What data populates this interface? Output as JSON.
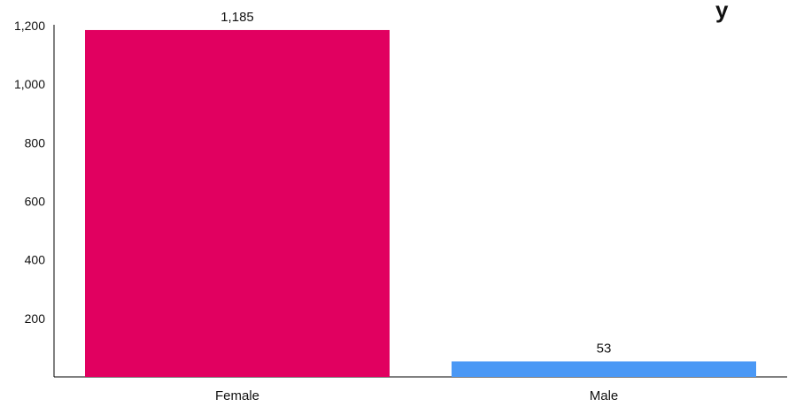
{
  "chart_data": {
    "type": "bar",
    "title": "",
    "xlabel": "",
    "ylabel": "",
    "categories": [
      "Female",
      "Male"
    ],
    "values": [
      1185,
      53
    ],
    "data_labels": [
      "1,185",
      "53"
    ],
    "bar_colors": [
      "#e10060",
      "#4a98f5"
    ],
    "y_ticks": [
      200,
      400,
      600,
      800,
      1000,
      1200
    ],
    "y_tick_labels": [
      "200",
      "400",
      "600",
      "800",
      "1,000",
      "1,200"
    ],
    "ylim": [
      0,
      1200
    ],
    "grid": false,
    "legend": "none",
    "title_fragment": "y"
  }
}
